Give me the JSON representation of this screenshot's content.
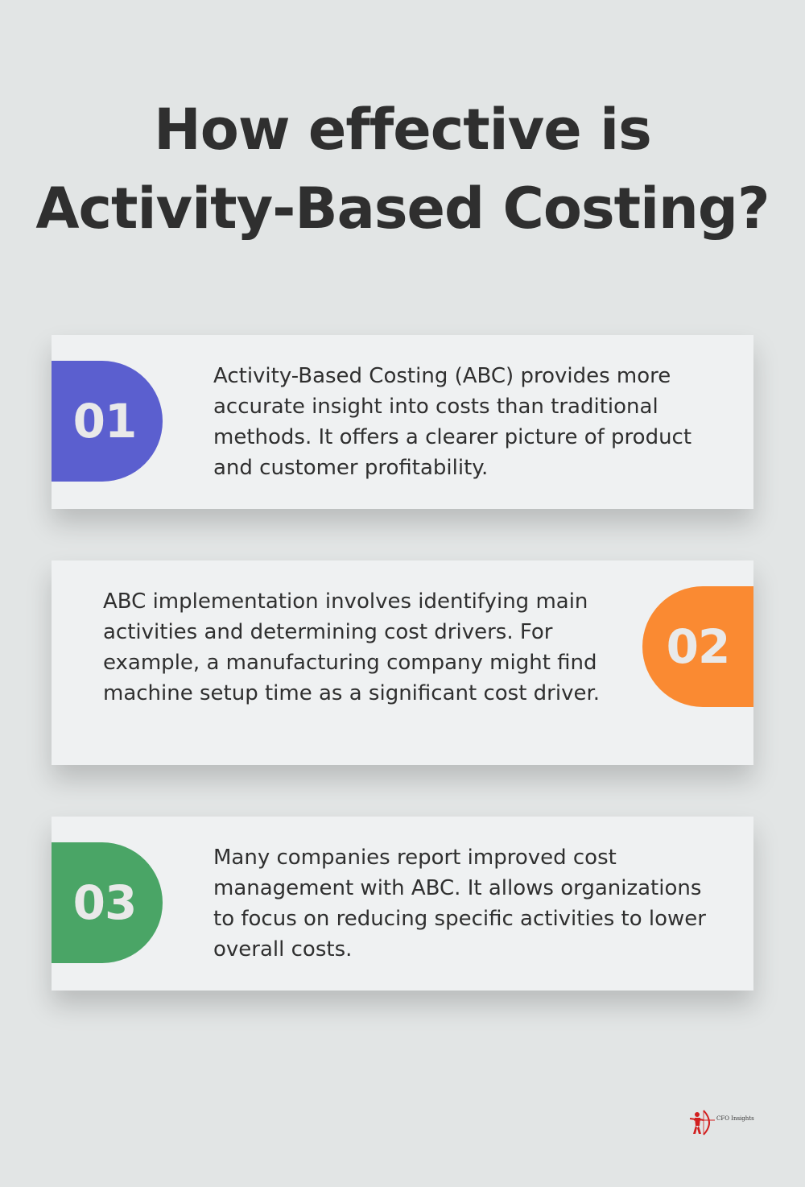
{
  "title": {
    "line1": "How effective is",
    "line2": "Activity-Based Costing?"
  },
  "cards": [
    {
      "number": "01",
      "text": "Activity-Based Costing (ABC) provides more accurate insight into costs than traditional methods. It offers a clearer picture of product and customer profitability.",
      "color": "#5b5fcf"
    },
    {
      "number": "02",
      "text": "ABC implementation involves identifying main activities and determining cost drivers. For example, a manufacturing company might find machine setup time as a significant cost driver.",
      "color": "#fa8a32"
    },
    {
      "number": "03",
      "text": "Many companies report improved cost management with ABC. It allows organizations to focus on reducing specific activities to lower overall costs.",
      "color": "#4aa566"
    }
  ],
  "logo": {
    "text": "CFO Insights",
    "color": "#d21f1f",
    "icon": "archer-icon"
  }
}
